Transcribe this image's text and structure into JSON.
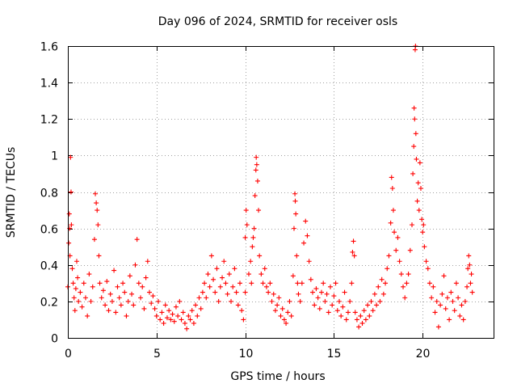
{
  "chart_data": {
    "type": "scatter",
    "title": "Day 096 of 2024, SRMTID for receiver osls",
    "xlabel": "GPS time / hours",
    "ylabel": "SRMTID / TECUs",
    "xlim": [
      0,
      24
    ],
    "ylim": [
      0,
      1.6
    ],
    "xticks": [
      0,
      5,
      10,
      15,
      20
    ],
    "xtick_labels": [
      "0",
      "5",
      "10",
      "15",
      "20"
    ],
    "yticks": [
      0,
      0.2,
      0.4,
      0.6,
      0.8,
      1,
      1.2,
      1.4,
      1.6
    ],
    "ytick_labels": [
      "0",
      "0.2",
      "0.4",
      "0.6",
      "0.8",
      "1",
      "1.2",
      "1.4",
      "1.6"
    ],
    "grid": true,
    "marker": "+",
    "series": [
      {
        "name": "SRMTID osls",
        "color": "#ff0000",
        "points": [
          [
            0.0,
            0.28
          ],
          [
            0.05,
            0.52
          ],
          [
            0.08,
            0.68
          ],
          [
            0.1,
            0.6
          ],
          [
            0.12,
            0.45
          ],
          [
            0.15,
            0.99
          ],
          [
            0.18,
            0.8
          ],
          [
            0.2,
            0.62
          ],
          [
            0.25,
            0.38
          ],
          [
            0.3,
            0.3
          ],
          [
            0.35,
            0.22
          ],
          [
            0.4,
            0.15
          ],
          [
            0.45,
            0.27
          ],
          [
            0.5,
            0.42
          ],
          [
            0.55,
            0.33
          ],
          [
            0.6,
            0.2
          ],
          [
            0.7,
            0.25
          ],
          [
            0.8,
            0.17
          ],
          [
            0.9,
            0.3
          ],
          [
            1.0,
            0.22
          ],
          [
            1.1,
            0.12
          ],
          [
            1.2,
            0.35
          ],
          [
            1.3,
            0.2
          ],
          [
            1.4,
            0.28
          ],
          [
            1.5,
            0.54
          ],
          [
            1.55,
            0.79
          ],
          [
            1.6,
            0.74
          ],
          [
            1.65,
            0.7
          ],
          [
            1.7,
            0.62
          ],
          [
            1.75,
            0.45
          ],
          [
            1.8,
            0.3
          ],
          [
            1.9,
            0.22
          ],
          [
            2.0,
            0.26
          ],
          [
            2.1,
            0.18
          ],
          [
            2.2,
            0.31
          ],
          [
            2.3,
            0.15
          ],
          [
            2.4,
            0.24
          ],
          [
            2.5,
            0.2
          ],
          [
            2.6,
            0.37
          ],
          [
            2.7,
            0.14
          ],
          [
            2.8,
            0.28
          ],
          [
            2.9,
            0.22
          ],
          [
            3.0,
            0.18
          ],
          [
            3.1,
            0.3
          ],
          [
            3.2,
            0.25
          ],
          [
            3.3,
            0.12
          ],
          [
            3.4,
            0.2
          ],
          [
            3.5,
            0.34
          ],
          [
            3.6,
            0.24
          ],
          [
            3.7,
            0.18
          ],
          [
            3.8,
            0.4
          ],
          [
            3.9,
            0.54
          ],
          [
            4.0,
            0.3
          ],
          [
            4.1,
            0.22
          ],
          [
            4.2,
            0.28
          ],
          [
            4.3,
            0.16
          ],
          [
            4.4,
            0.33
          ],
          [
            4.5,
            0.42
          ],
          [
            4.6,
            0.25
          ],
          [
            4.7,
            0.19
          ],
          [
            4.8,
            0.23
          ],
          [
            4.9,
            0.16
          ],
          [
            5.0,
            0.12
          ],
          [
            5.1,
            0.2
          ],
          [
            5.2,
            0.1
          ],
          [
            5.3,
            0.14
          ],
          [
            5.4,
            0.08
          ],
          [
            5.5,
            0.18
          ],
          [
            5.6,
            0.11
          ],
          [
            5.7,
            0.15
          ],
          [
            5.8,
            0.1
          ],
          [
            5.9,
            0.13
          ],
          [
            6.0,
            0.09
          ],
          [
            6.1,
            0.17
          ],
          [
            6.2,
            0.12
          ],
          [
            6.3,
            0.2
          ],
          [
            6.4,
            0.1
          ],
          [
            6.5,
            0.14
          ],
          [
            6.6,
            0.08
          ],
          [
            6.7,
            0.05
          ],
          [
            6.8,
            0.12
          ],
          [
            6.9,
            0.1
          ],
          [
            7.0,
            0.15
          ],
          [
            7.1,
            0.08
          ],
          [
            7.2,
            0.18
          ],
          [
            7.3,
            0.12
          ],
          [
            7.4,
            0.22
          ],
          [
            7.5,
            0.16
          ],
          [
            7.6,
            0.25
          ],
          [
            7.7,
            0.3
          ],
          [
            7.8,
            0.22
          ],
          [
            7.9,
            0.35
          ],
          [
            8.0,
            0.28
          ],
          [
            8.1,
            0.45
          ],
          [
            8.2,
            0.32
          ],
          [
            8.3,
            0.25
          ],
          [
            8.4,
            0.38
          ],
          [
            8.5,
            0.2
          ],
          [
            8.6,
            0.28
          ],
          [
            8.7,
            0.33
          ],
          [
            8.8,
            0.42
          ],
          [
            8.9,
            0.3
          ],
          [
            9.0,
            0.24
          ],
          [
            9.1,
            0.35
          ],
          [
            9.2,
            0.2
          ],
          [
            9.3,
            0.28
          ],
          [
            9.4,
            0.38
          ],
          [
            9.5,
            0.25
          ],
          [
            9.6,
            0.18
          ],
          [
            9.7,
            0.3
          ],
          [
            9.8,
            0.15
          ],
          [
            9.9,
            0.1
          ],
          [
            10.0,
            0.25
          ],
          [
            10.0,
            0.55
          ],
          [
            10.05,
            0.7
          ],
          [
            10.1,
            0.62
          ],
          [
            10.2,
            0.35
          ],
          [
            10.3,
            0.42
          ],
          [
            10.35,
            0.3
          ],
          [
            10.4,
            0.5
          ],
          [
            10.45,
            0.55
          ],
          [
            10.5,
            0.6
          ],
          [
            10.55,
            0.78
          ],
          [
            10.6,
            0.92
          ],
          [
            10.62,
            0.99
          ],
          [
            10.65,
            0.95
          ],
          [
            10.7,
            0.86
          ],
          [
            10.75,
            0.7
          ],
          [
            10.8,
            0.45
          ],
          [
            10.9,
            0.35
          ],
          [
            11.0,
            0.3
          ],
          [
            11.1,
            0.38
          ],
          [
            11.2,
            0.28
          ],
          [
            11.3,
            0.25
          ],
          [
            11.4,
            0.3
          ],
          [
            11.5,
            0.2
          ],
          [
            11.6,
            0.24
          ],
          [
            11.7,
            0.15
          ],
          [
            11.8,
            0.18
          ],
          [
            11.9,
            0.22
          ],
          [
            12.0,
            0.12
          ],
          [
            12.1,
            0.16
          ],
          [
            12.2,
            0.1
          ],
          [
            12.3,
            0.08
          ],
          [
            12.4,
            0.14
          ],
          [
            12.5,
            0.2
          ],
          [
            12.6,
            0.12
          ],
          [
            12.7,
            0.34
          ],
          [
            12.75,
            0.6
          ],
          [
            12.8,
            0.79
          ],
          [
            12.82,
            0.75
          ],
          [
            12.85,
            0.68
          ],
          [
            12.9,
            0.45
          ],
          [
            12.95,
            0.3
          ],
          [
            13.0,
            0.24
          ],
          [
            13.1,
            0.2
          ],
          [
            13.2,
            0.3
          ],
          [
            13.3,
            0.52
          ],
          [
            13.4,
            0.64
          ],
          [
            13.5,
            0.56
          ],
          [
            13.6,
            0.42
          ],
          [
            13.7,
            0.32
          ],
          [
            13.8,
            0.25
          ],
          [
            13.9,
            0.18
          ],
          [
            14.0,
            0.27
          ],
          [
            14.1,
            0.22
          ],
          [
            14.2,
            0.16
          ],
          [
            14.3,
            0.25
          ],
          [
            14.4,
            0.3
          ],
          [
            14.5,
            0.2
          ],
          [
            14.6,
            0.24
          ],
          [
            14.7,
            0.14
          ],
          [
            14.8,
            0.28
          ],
          [
            14.9,
            0.18
          ],
          [
            15.0,
            0.23
          ],
          [
            15.1,
            0.3
          ],
          [
            15.2,
            0.15
          ],
          [
            15.3,
            0.2
          ],
          [
            15.4,
            0.12
          ],
          [
            15.5,
            0.17
          ],
          [
            15.6,
            0.25
          ],
          [
            15.7,
            0.1
          ],
          [
            15.8,
            0.14
          ],
          [
            15.9,
            0.2
          ],
          [
            16.0,
            0.3
          ],
          [
            16.05,
            0.47
          ],
          [
            16.1,
            0.53
          ],
          [
            16.15,
            0.45
          ],
          [
            16.2,
            0.14
          ],
          [
            16.3,
            0.1
          ],
          [
            16.4,
            0.06
          ],
          [
            16.5,
            0.12
          ],
          [
            16.6,
            0.08
          ],
          [
            16.7,
            0.15
          ],
          [
            16.8,
            0.1
          ],
          [
            16.9,
            0.18
          ],
          [
            17.0,
            0.12
          ],
          [
            17.1,
            0.2
          ],
          [
            17.2,
            0.15
          ],
          [
            17.3,
            0.24
          ],
          [
            17.4,
            0.18
          ],
          [
            17.5,
            0.28
          ],
          [
            17.6,
            0.2
          ],
          [
            17.7,
            0.32
          ],
          [
            17.8,
            0.24
          ],
          [
            17.9,
            0.3
          ],
          [
            18.0,
            0.38
          ],
          [
            18.1,
            0.45
          ],
          [
            18.2,
            0.63
          ],
          [
            18.25,
            0.88
          ],
          [
            18.3,
            0.82
          ],
          [
            18.35,
            0.7
          ],
          [
            18.4,
            0.58
          ],
          [
            18.5,
            0.48
          ],
          [
            18.6,
            0.55
          ],
          [
            18.7,
            0.42
          ],
          [
            18.8,
            0.35
          ],
          [
            18.9,
            0.28
          ],
          [
            19.0,
            0.22
          ],
          [
            19.1,
            0.3
          ],
          [
            19.2,
            0.35
          ],
          [
            19.3,
            0.48
          ],
          [
            19.4,
            0.62
          ],
          [
            19.45,
            0.9
          ],
          [
            19.5,
            1.05
          ],
          [
            19.52,
            1.26
          ],
          [
            19.55,
            1.2
          ],
          [
            19.58,
            1.58
          ],
          [
            19.6,
            1.6
          ],
          [
            19.62,
            1.12
          ],
          [
            19.65,
            0.98
          ],
          [
            19.7,
            0.75
          ],
          [
            19.75,
            0.85
          ],
          [
            19.8,
            0.7
          ],
          [
            19.85,
            0.96
          ],
          [
            19.9,
            0.82
          ],
          [
            19.95,
            0.65
          ],
          [
            20.0,
            0.58
          ],
          [
            20.05,
            0.62
          ],
          [
            20.1,
            0.5
          ],
          [
            20.2,
            0.42
          ],
          [
            20.3,
            0.38
          ],
          [
            20.4,
            0.3
          ],
          [
            20.5,
            0.22
          ],
          [
            20.6,
            0.28
          ],
          [
            20.7,
            0.14
          ],
          [
            20.8,
            0.2
          ],
          [
            20.9,
            0.06
          ],
          [
            21.0,
            0.18
          ],
          [
            21.1,
            0.24
          ],
          [
            21.2,
            0.34
          ],
          [
            21.3,
            0.16
          ],
          [
            21.4,
            0.22
          ],
          [
            21.5,
            0.1
          ],
          [
            21.6,
            0.25
          ],
          [
            21.7,
            0.2
          ],
          [
            21.8,
            0.15
          ],
          [
            21.9,
            0.3
          ],
          [
            22.0,
            0.22
          ],
          [
            22.1,
            0.12
          ],
          [
            22.2,
            0.18
          ],
          [
            22.3,
            0.1
          ],
          [
            22.4,
            0.2
          ],
          [
            22.5,
            0.28
          ],
          [
            22.55,
            0.38
          ],
          [
            22.6,
            0.45
          ],
          [
            22.65,
            0.4
          ],
          [
            22.7,
            0.3
          ],
          [
            22.75,
            0.35
          ],
          [
            22.8,
            0.25
          ]
        ]
      }
    ]
  }
}
